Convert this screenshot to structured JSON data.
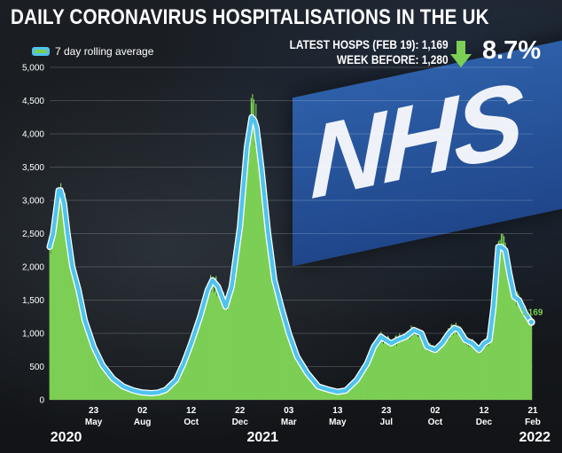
{
  "header": {
    "title": "DAILY CORONAVIRUS HOSPITALISATIONS  IN THE UK",
    "stat_latest": "LATEST HOSPS (FEB 19): 1,169",
    "stat_week_before": "WEEK BEFORE: 1,280",
    "change_pct": "8.7%",
    "change_icon": "down-arrow-icon"
  },
  "background": {
    "sign_text": "NHS"
  },
  "colors": {
    "bars": "#7ccf55",
    "line": "#4fc3ee",
    "line_casing": "#ffffff",
    "arrow": "#7ccf55"
  },
  "chart_data": {
    "type": "area",
    "title": "DAILY CORONAVIRUS HOSPITALISATIONS  IN THE UK",
    "xlabel": "",
    "ylabel": "",
    "ylim": [
      0,
      5000
    ],
    "yticks": [
      0,
      500,
      1000,
      1500,
      2000,
      2500,
      3000,
      3500,
      4000,
      4500,
      5000
    ],
    "ytick_labels": [
      "0",
      "500",
      "1,000",
      "1,500",
      "2,000",
      "2,500",
      "3,000",
      "3,500",
      "4,000",
      "4,500",
      "5,000"
    ],
    "grid": true,
    "legend": "top-left",
    "xticks": [
      {
        "date": "2020-05-23",
        "day": "23",
        "month": "May"
      },
      {
        "date": "2020-08-02",
        "day": "02",
        "month": "Aug"
      },
      {
        "date": "2020-10-12",
        "day": "12",
        "month": "Oct"
      },
      {
        "date": "2020-12-22",
        "day": "22",
        "month": "Dec"
      },
      {
        "date": "2021-03-03",
        "day": "03",
        "month": "Mar"
      },
      {
        "date": "2021-05-13",
        "day": "13",
        "month": "May"
      },
      {
        "date": "2021-07-23",
        "day": "23",
        "month": "Jul"
      },
      {
        "date": "2021-10-02",
        "day": "02",
        "month": "Oct"
      },
      {
        "date": "2021-12-12",
        "day": "12",
        "month": "Dec"
      },
      {
        "date": "2022-02-21",
        "day": "21",
        "month": "Feb"
      }
    ],
    "years": [
      {
        "label": "2020",
        "date": "2020-03-21"
      },
      {
        "label": "2021",
        "date": "2021-01-01"
      },
      {
        "label": "2022",
        "date": "2022-02-01"
      }
    ],
    "end_label": "1,169",
    "series": [
      {
        "name": "7 day rolling average",
        "x": [
          "2020-03-20",
          "2020-03-25",
          "2020-03-30",
          "2020-04-02",
          "2020-04-05",
          "2020-04-10",
          "2020-04-15",
          "2020-04-22",
          "2020-05-01",
          "2020-05-10",
          "2020-05-23",
          "2020-06-05",
          "2020-06-20",
          "2020-07-05",
          "2020-07-20",
          "2020-08-02",
          "2020-08-15",
          "2020-08-25",
          "2020-09-05",
          "2020-09-20",
          "2020-10-01",
          "2020-10-12",
          "2020-10-25",
          "2020-11-05",
          "2020-11-12",
          "2020-11-20",
          "2020-12-01",
          "2020-12-10",
          "2020-12-22",
          "2021-01-01",
          "2021-01-08",
          "2021-01-12",
          "2021-01-15",
          "2021-01-22",
          "2021-02-01",
          "2021-02-10",
          "2021-02-20",
          "2021-03-03",
          "2021-03-15",
          "2021-03-30",
          "2021-04-15",
          "2021-05-01",
          "2021-05-13",
          "2021-05-25",
          "2021-06-10",
          "2021-06-25",
          "2021-07-05",
          "2021-07-15",
          "2021-07-22",
          "2021-07-30",
          "2021-08-08",
          "2021-08-20",
          "2021-09-01",
          "2021-09-12",
          "2021-09-20",
          "2021-10-02",
          "2021-10-12",
          "2021-10-22",
          "2021-10-30",
          "2021-11-06",
          "2021-11-15",
          "2021-11-25",
          "2021-12-05",
          "2021-12-12",
          "2021-12-20",
          "2021-12-26",
          "2022-01-02",
          "2022-01-06",
          "2022-01-12",
          "2022-01-18",
          "2022-01-25",
          "2022-02-01",
          "2022-02-10",
          "2022-02-19"
        ],
        "values": [
          2300,
          2500,
          2900,
          3150,
          3150,
          2950,
          2500,
          2000,
          1650,
          1200,
          800,
          520,
          320,
          200,
          140,
          110,
          100,
          110,
          150,
          300,
          550,
          850,
          1250,
          1650,
          1800,
          1700,
          1400,
          1700,
          2600,
          3800,
          4250,
          4200,
          4100,
          3500,
          2500,
          1800,
          1400,
          1000,
          650,
          400,
          200,
          150,
          120,
          140,
          300,
          550,
          800,
          950,
          900,
          850,
          900,
          950,
          1050,
          1000,
          800,
          750,
          850,
          1000,
          1080,
          1050,
          900,
          850,
          750,
          850,
          900,
          1400,
          2300,
          2300,
          2250,
          1900,
          1550,
          1500,
          1300,
          1169
        ]
      }
    ]
  }
}
